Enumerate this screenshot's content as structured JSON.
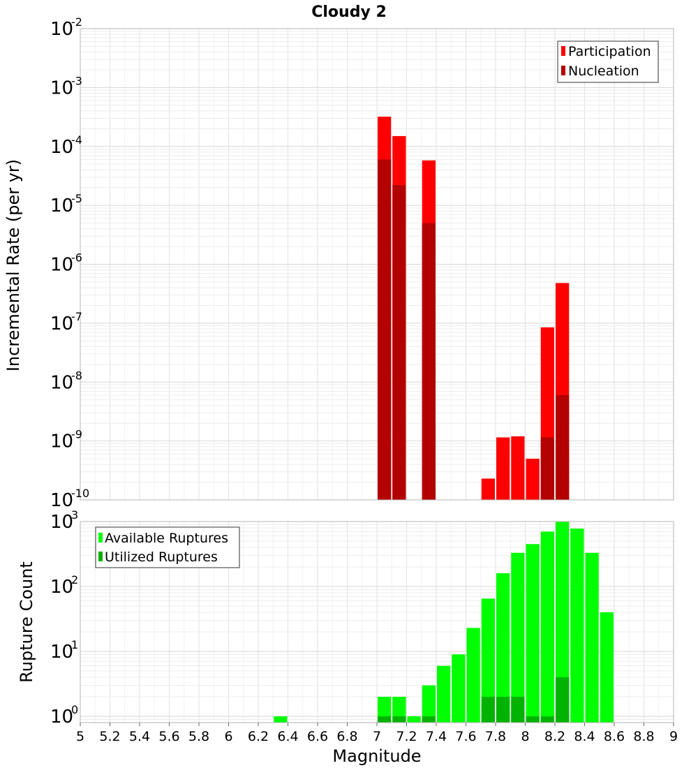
{
  "title": "Cloudy 2",
  "xlabel": "Magnitude",
  "x_ticks": [
    "5",
    "5.2",
    "5.4",
    "5.6",
    "5.8",
    "6",
    "6.2",
    "6.4",
    "6.6",
    "6.8",
    "7",
    "7.2",
    "7.4",
    "7.6",
    "7.8",
    "8",
    "8.2",
    "8.4",
    "8.6",
    "8.8",
    "9"
  ],
  "chart_data": [
    {
      "type": "bar",
      "ylabel": "Incremental Rate (per yr)",
      "xlim": [
        5,
        9
      ],
      "ylim": [
        1e-10,
        0.01
      ],
      "yscale": "log",
      "grid": true,
      "legend_position": "top-right",
      "y_tick_exponents": [
        "-2",
        "-3",
        "-4",
        "-5",
        "-6",
        "-7",
        "-8",
        "-9",
        "-10"
      ],
      "bin_width": 0.1,
      "colors": {
        "participation": "#ff0000",
        "nucleation": "#b30000"
      },
      "series": [
        {
          "name": "Participation",
          "x": [
            7.05,
            7.15,
            7.35,
            7.75,
            7.85,
            7.95,
            8.05,
            8.15,
            8.25
          ],
          "values": [
            0.00032,
            0.00015,
            5.8e-05,
            2.3e-10,
            1.15e-09,
            1.2e-09,
            5e-10,
            8.5e-08,
            4.8e-07
          ]
        },
        {
          "name": "Nucleation",
          "x": [
            7.05,
            7.15,
            7.35,
            8.15,
            8.25
          ],
          "values": [
            6e-05,
            2.2e-05,
            5e-06,
            1.15e-09,
            6e-09
          ]
        }
      ]
    },
    {
      "type": "bar",
      "ylabel": "Rupture Count",
      "xlim": [
        5,
        9
      ],
      "ylim": [
        0.8,
        1000
      ],
      "yscale": "log",
      "grid": true,
      "legend_position": "top-left",
      "y_tick_exponents": [
        "3",
        "2",
        "1",
        "0"
      ],
      "bin_width": 0.1,
      "colors": {
        "available": "#00ff00",
        "utilized": "#00b300"
      },
      "series": [
        {
          "name": "Available Ruptures",
          "x": [
            6.35,
            7.05,
            7.15,
            7.25,
            7.35,
            7.45,
            7.55,
            7.65,
            7.75,
            7.85,
            7.95,
            8.05,
            8.15,
            8.25,
            8.35,
            8.45,
            8.55
          ],
          "values": [
            1,
            2,
            2,
            1,
            3,
            6,
            9,
            23,
            65,
            160,
            330,
            450,
            700,
            1000,
            780,
            330,
            40
          ]
        },
        {
          "name": "Utilized Ruptures",
          "x": [
            7.05,
            7.15,
            7.35,
            7.75,
            7.85,
            7.95,
            8.05,
            8.15,
            8.25
          ],
          "values": [
            1,
            1,
            1,
            2,
            2,
            2,
            1,
            1,
            4
          ]
        }
      ]
    }
  ]
}
